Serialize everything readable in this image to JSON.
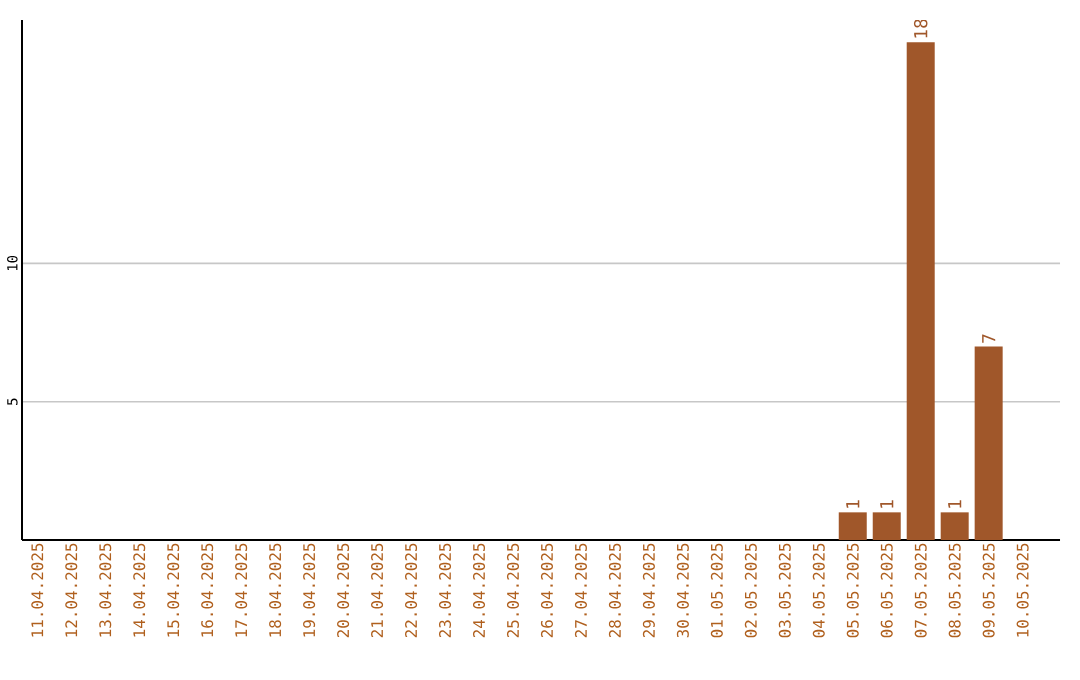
{
  "chart_data": {
    "type": "bar",
    "categories": [
      "11.04.2025",
      "12.04.2025",
      "13.04.2025",
      "14.04.2025",
      "15.04.2025",
      "16.04.2025",
      "17.04.2025",
      "18.04.2025",
      "19.04.2025",
      "20.04.2025",
      "21.04.2025",
      "22.04.2025",
      "23.04.2025",
      "24.04.2025",
      "25.04.2025",
      "26.04.2025",
      "27.04.2025",
      "28.04.2025",
      "29.04.2025",
      "30.04.2025",
      "01.05.2025",
      "02.05.2025",
      "03.05.2025",
      "04.05.2025",
      "05.05.2025",
      "06.05.2025",
      "07.05.2025",
      "08.05.2025",
      "09.05.2025",
      "10.05.2025"
    ],
    "values": [
      0,
      0,
      0,
      0,
      0,
      0,
      0,
      0,
      0,
      0,
      0,
      0,
      0,
      0,
      0,
      0,
      0,
      0,
      0,
      0,
      0,
      0,
      0,
      0,
      1,
      1,
      18,
      1,
      7,
      0
    ],
    "value_labels": [
      null,
      null,
      null,
      null,
      null,
      null,
      null,
      null,
      null,
      null,
      null,
      null,
      null,
      null,
      null,
      null,
      null,
      null,
      null,
      null,
      null,
      null,
      null,
      null,
      "1",
      "1",
      "18",
      "1",
      "7",
      null
    ],
    "color": "#a0572a",
    "ylim": [
      0,
      18.8
    ],
    "yticks": [
      5,
      10
    ],
    "grid": "y"
  }
}
